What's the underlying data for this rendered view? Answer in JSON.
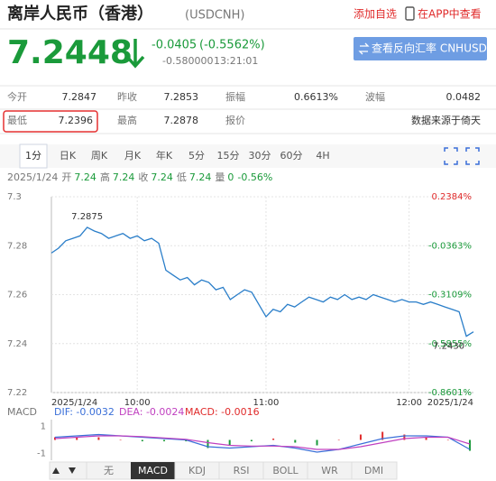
{
  "header": {
    "title": "离岸人民币（香港）",
    "code": "(USDCNH)",
    "add_watch": "添加自选",
    "app_link": "在APP中查看"
  },
  "quote": {
    "price": "7.2448",
    "change": "-0.0405",
    "change_pct": "(-0.5562%)",
    "sub_value": "-0.580000",
    "time": "13:21:01",
    "button": "查看反向汇率 CNHUSD"
  },
  "stats": {
    "rows": [
      [
        {
          "label": "今开",
          "value": "7.2847"
        },
        {
          "label": "昨收",
          "value": "7.2853"
        },
        {
          "label": "振幅",
          "value": "0.6613%"
        },
        {
          "label": "波幅",
          "value": "0.0482"
        }
      ],
      [
        {
          "label": "最低",
          "value": "7.2396"
        },
        {
          "label": "最高",
          "value": "7.2878"
        },
        {
          "label": "报价",
          "value": "数据来源于倚天"
        }
      ]
    ]
  },
  "tabs": [
    "1分",
    "日K",
    "周K",
    "月K",
    "年K",
    "5分",
    "15分",
    "30分",
    "60分",
    "4H"
  ],
  "info_line": {
    "date": "2025/1/24",
    "items": [
      {
        "label": "开",
        "value": "7.24"
      },
      {
        "label": "高",
        "value": "7.24"
      },
      {
        "label": "收",
        "value": "7.24"
      },
      {
        "label": "低",
        "value": "7.24"
      },
      {
        "label": "量",
        "value": "0"
      }
    ],
    "change": "-0.56%"
  },
  "chart": {
    "type": "line",
    "series": [
      {
        "color": "#2a7ec9",
        "values": [
          7.277,
          7.279,
          7.282,
          7.283,
          7.284,
          7.2875,
          7.286,
          7.285,
          7.283,
          7.284,
          7.285,
          7.283,
          7.284,
          7.282,
          7.283,
          7.281,
          7.27,
          7.268,
          7.266,
          7.267,
          7.264,
          7.266,
          7.265,
          7.262,
          7.263,
          7.258,
          7.26,
          7.262,
          7.261,
          7.256,
          7.251,
          7.254,
          7.253,
          7.256,
          7.255,
          7.257,
          7.259,
          7.258,
          7.257,
          7.259,
          7.258,
          7.26,
          7.258,
          7.259,
          7.258,
          7.26,
          7.259,
          7.258,
          7.257,
          7.258,
          7.257,
          7.257,
          7.256,
          7.257,
          7.256,
          7.255,
          7.254,
          7.253,
          7.243,
          7.2448
        ]
      }
    ],
    "ylim": [
      7.22,
      7.3
    ],
    "yticks": [
      7.22,
      7.24,
      7.26,
      7.28,
      7.3
    ],
    "y2lim": [
      -0.8601,
      0.2384
    ],
    "y2ticks": [
      {
        "value": 0.2384,
        "label": "0.2384%"
      },
      {
        "value": -0.0363,
        "label": "-0.0363%"
      },
      {
        "value": -0.3109,
        "label": "-0.3109%"
      },
      {
        "value": -0.5855,
        "label": "-0.5855%"
      },
      {
        "value": -0.8601,
        "label": "-0.8601%"
      }
    ],
    "xticks": [
      {
        "value": 0,
        "label": "2025/1/24"
      },
      {
        "value": 12,
        "label": "10:00"
      },
      {
        "value": 30,
        "label": "11:00"
      },
      {
        "value": 50,
        "label": "12:00"
      },
      {
        "value": 59,
        "label": "2025/1/24"
      }
    ],
    "annotations": [
      {
        "label": "7.2875",
        "value": 7.2875
      },
      {
        "label": "7.2430",
        "value": 7.243
      }
    ],
    "grid": true
  },
  "macd": {
    "legend": {
      "title": "MACD",
      "dif": "DIF: -0.0032",
      "dea": "DEA: -0.0024",
      "macd": "MACD: -0.0016"
    },
    "ylim": [
      -1.5,
      1.5
    ],
    "yticks": [
      1,
      -1
    ],
    "series": [
      {
        "color": "#3a6fd8",
        "values": [
          0.2,
          0.3,
          0.4,
          0.3,
          0.2,
          0.1,
          0.0,
          -0.5,
          -0.6,
          -0.5,
          -0.4,
          -0.6,
          -0.9,
          -0.7,
          -0.3,
          0.1,
          0.3,
          0.3,
          0.2,
          -0.7
        ]
      },
      {
        "color": "#c040c0",
        "values": [
          0.1,
          0.2,
          0.3,
          0.3,
          0.25,
          0.15,
          0.05,
          -0.2,
          -0.4,
          -0.45,
          -0.45,
          -0.5,
          -0.7,
          -0.7,
          -0.5,
          -0.2,
          0.1,
          0.2,
          0.2,
          -0.3
        ]
      }
    ],
    "bars": [
      0.2,
      0.2,
      0.2,
      0,
      -0.1,
      -0.1,
      -0.1,
      -0.6,
      -0.4,
      -0.1,
      0.1,
      -0.2,
      -0.4,
      0,
      0.4,
      0.6,
      0.4,
      0.2,
      0,
      -0.8
    ]
  },
  "indicator_tabs": [
    "无",
    "MACD",
    "KDJ",
    "RSI",
    "BOLL",
    "WR",
    "DMI"
  ]
}
